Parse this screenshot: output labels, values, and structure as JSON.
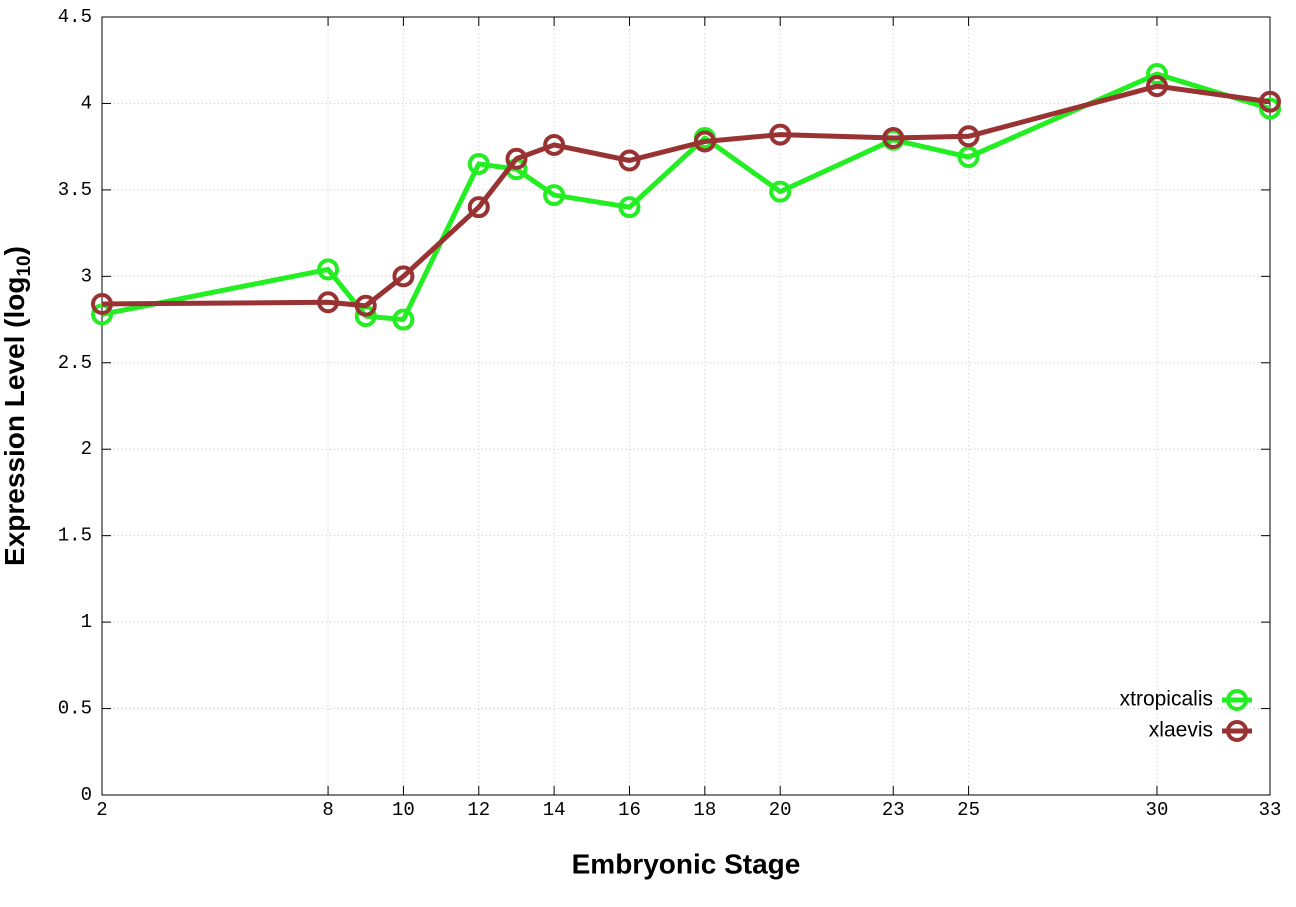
{
  "chart_data": {
    "type": "line",
    "x_label": "Embryonic Stage",
    "y_label": [
      "Expression Level (log",
      "10",
      ")"
    ],
    "x": [
      2,
      8,
      9,
      10,
      12,
      13,
      14,
      16,
      18,
      20,
      23,
      25,
      30,
      33
    ],
    "series": [
      {
        "name": "xtropicalis",
        "color": "#22ee22",
        "values": [
          2.78,
          3.04,
          2.77,
          2.75,
          3.65,
          3.62,
          3.47,
          3.4,
          3.8,
          3.49,
          3.79,
          3.69,
          4.17,
          3.97
        ]
      },
      {
        "name": "xlaevis",
        "color": "#993333",
        "values": [
          2.84,
          2.85,
          2.83,
          3.0,
          3.4,
          3.68,
          3.76,
          3.67,
          3.78,
          3.82,
          3.8,
          3.81,
          4.1,
          4.01
        ]
      }
    ],
    "xlim": [
      2,
      33
    ],
    "xticks": [
      2,
      8,
      10,
      12,
      14,
      16,
      18,
      20,
      23,
      25,
      30,
      33
    ],
    "ylim": [
      0,
      4.5
    ],
    "yticks": [
      0,
      0.5,
      1,
      1.5,
      2,
      2.5,
      3,
      3.5,
      4,
      4.5
    ],
    "grid": true,
    "legend": "lower right"
  }
}
